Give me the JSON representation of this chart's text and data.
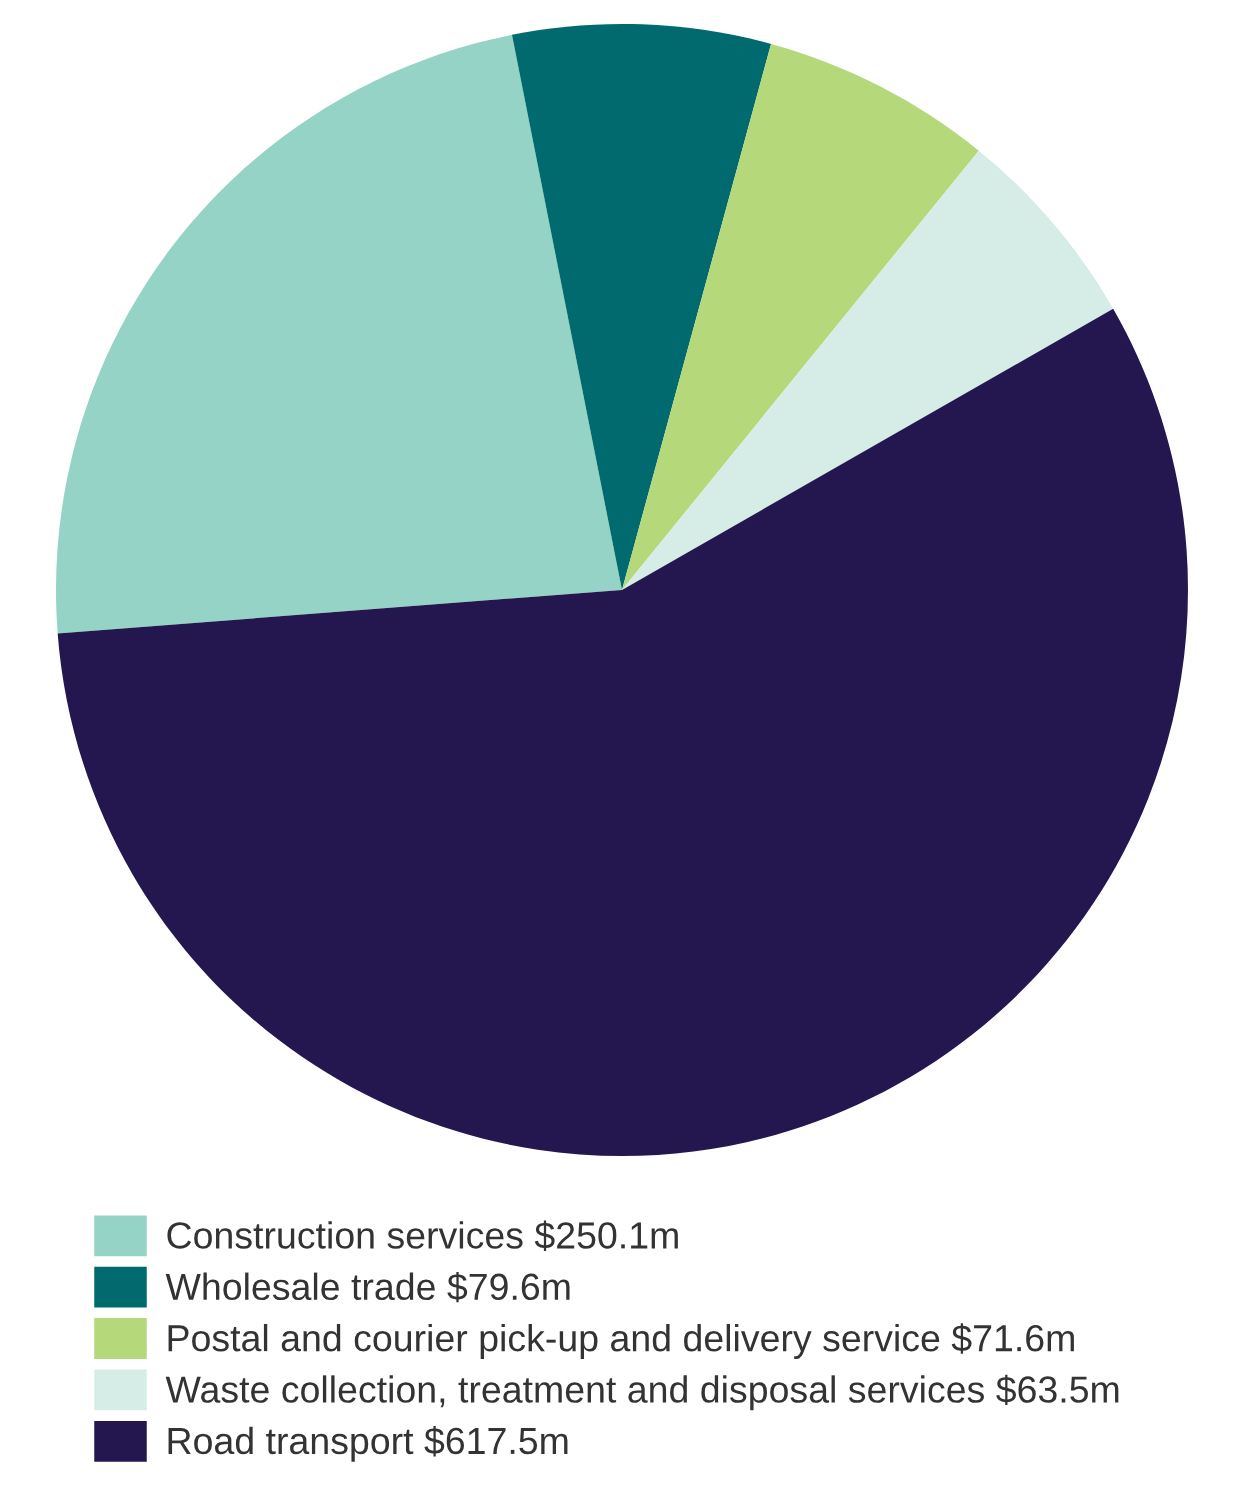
{
  "chart_data": {
    "type": "pie",
    "categories": [
      "Construction services",
      "Wholesale trade",
      "Postal and courier pick-up and delivery service",
      "Waste collection, treatment and disposal services",
      "Road transport"
    ],
    "values": [
      250.1,
      79.6,
      71.6,
      63.5,
      617.5
    ],
    "value_labels": [
      "$250.1m",
      "$79.6m",
      "$71.6m",
      "$63.5m",
      "$617.5m"
    ],
    "colors": [
      "#94d3c5",
      "#006a6e",
      "#b5d97a",
      "#d6ece6",
      "#24174f"
    ],
    "legend": "bottom left"
  }
}
